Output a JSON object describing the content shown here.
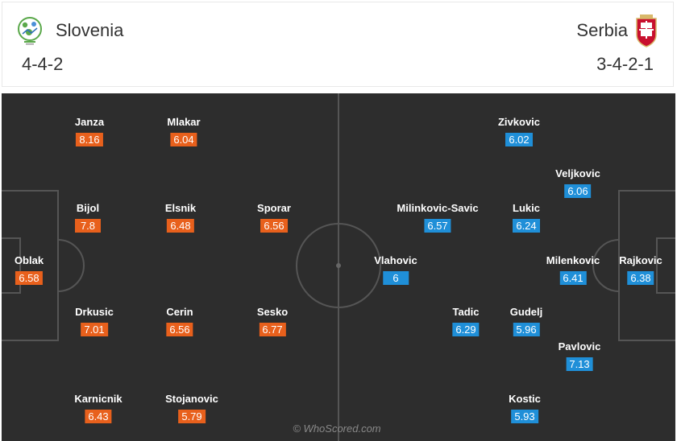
{
  "home": {
    "name": "Slovenia",
    "formation": "4-4-2",
    "color": "#e8601c",
    "crest_icon": "slovenia-crest-icon",
    "players": [
      {
        "name": "Janza",
        "rating": "8.16"
      },
      {
        "name": "Mlakar",
        "rating": "6.04"
      },
      {
        "name": "Bijol",
        "rating": "7.8"
      },
      {
        "name": "Elsnik",
        "rating": "6.48"
      },
      {
        "name": "Sporar",
        "rating": "6.56"
      },
      {
        "name": "Oblak",
        "rating": "6.58"
      },
      {
        "name": "Drkusic",
        "rating": "7.01"
      },
      {
        "name": "Cerin",
        "rating": "6.56"
      },
      {
        "name": "Sesko",
        "rating": "6.77"
      },
      {
        "name": "Karnicnik",
        "rating": "6.43"
      },
      {
        "name": "Stojanovic",
        "rating": "5.79"
      }
    ]
  },
  "away": {
    "name": "Serbia",
    "formation": "3-4-2-1",
    "color": "#1f8fd8",
    "crest_icon": "serbia-crest-icon",
    "players": [
      {
        "name": "Zivkovic",
        "rating": "6.02"
      },
      {
        "name": "Veljkovic",
        "rating": "6.06"
      },
      {
        "name": "Milinkovic-Savic",
        "rating": "6.57"
      },
      {
        "name": "Lukic",
        "rating": "6.24"
      },
      {
        "name": "Vlahovic",
        "rating": "6"
      },
      {
        "name": "Milenkovic",
        "rating": "6.41"
      },
      {
        "name": "Rajkovic",
        "rating": "6.38"
      },
      {
        "name": "Tadic",
        "rating": "6.29"
      },
      {
        "name": "Gudelj",
        "rating": "5.96"
      },
      {
        "name": "Pavlovic",
        "rating": "7.13"
      },
      {
        "name": "Kostic",
        "rating": "5.93"
      }
    ]
  },
  "watermark": "© WhoScored.com"
}
